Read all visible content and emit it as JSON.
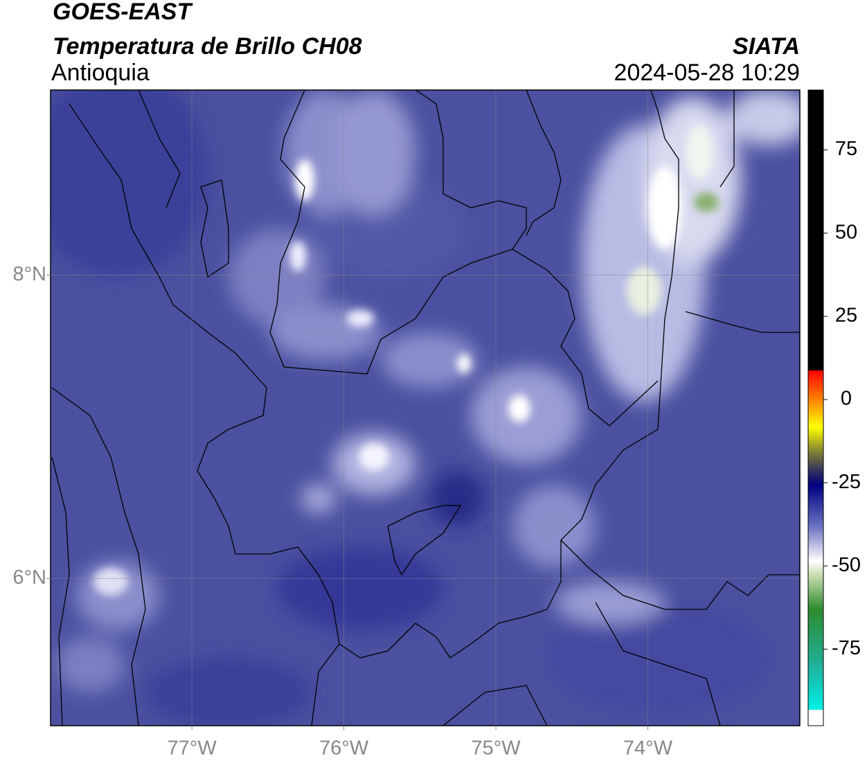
{
  "header": {
    "satellite": "GOES-EAST",
    "product": "Temperatura de Brillo CH08",
    "region": "Antioquia",
    "source": "SIATA",
    "datetime": "2024-05-28 10:29"
  },
  "map": {
    "xlim": [
      -77.93,
      -73.0
    ],
    "ylim": [
      5.03,
      9.22
    ],
    "xticks": [
      {
        "value": -77,
        "label": "77°W"
      },
      {
        "value": -76,
        "label": "76°W"
      },
      {
        "value": -75,
        "label": "75°W"
      },
      {
        "value": -74,
        "label": "74°W"
      }
    ],
    "yticks": [
      {
        "value": 8,
        "label": "8°N"
      },
      {
        "value": 6,
        "label": "6°N"
      }
    ],
    "grid": true
  },
  "colorbar": {
    "lim": [
      -98,
      93
    ],
    "ticks": [
      75,
      50,
      25,
      0,
      -25,
      -50,
      -75
    ]
  }
}
